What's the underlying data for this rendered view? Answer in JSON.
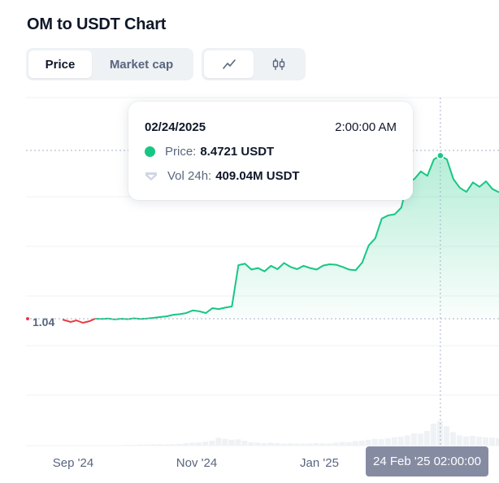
{
  "page": {
    "title": "OM to USDT Chart"
  },
  "tabs": {
    "metric": [
      {
        "label": "Price",
        "active": true
      },
      {
        "label": "Market cap",
        "active": false
      }
    ],
    "view": [
      {
        "icon": "line-chart-icon",
        "active": true
      },
      {
        "icon": "candlestick-icon",
        "active": false
      }
    ]
  },
  "tooltip": {
    "date": "02/24/2025",
    "time": "2:00:00 AM",
    "price_label": "Price:",
    "price_value": "8.4721 USDT",
    "vol_label": "Vol 24h:",
    "vol_value": "409.04M USDT"
  },
  "price_marker": "1.04",
  "x_hover_label": "24 Feb '25 02:00:00",
  "colors": {
    "up": "#16c784",
    "down": "#ea3943",
    "axis_text": "#58667e",
    "hover_bg": "#858ca2"
  },
  "chart_data": {
    "type": "line",
    "x_ticks": [
      "Sep '24",
      "Nov '24",
      "Jan '25"
    ],
    "baseline": 1.04,
    "series": [
      {
        "values": [
          1.04,
          1.03,
          1.05,
          1.01,
          1.04,
          1.02,
          1.06,
          1.03,
          1.05,
          1.08,
          1.12,
          1.15,
          1.22,
          1.25,
          1.3,
          1.42,
          1.38,
          1.3,
          1.52,
          1.48,
          1.55,
          1.6,
          3.48,
          3.55,
          3.28,
          3.35,
          3.2,
          3.45,
          3.3,
          3.58,
          3.4,
          3.3,
          3.45,
          3.35,
          3.28,
          3.46,
          3.52,
          3.5,
          3.4,
          3.28,
          3.25,
          3.6,
          4.38,
          4.7,
          5.6,
          5.75,
          5.8,
          6.1,
          7.3,
          7.4,
          7.75,
          7.55,
          8.3,
          8.47,
          8.3,
          7.4,
          7.0,
          6.82,
          7.25,
          7.05,
          7.3,
          6.95,
          6.8
        ],
        "volume": [
          0.02,
          0.02,
          0.02,
          0.02,
          0.02,
          0.03,
          0.03,
          0.04,
          0.05,
          0.05,
          0.06,
          0.05,
          0.06,
          0.07,
          0.1,
          0.12,
          0.13,
          0.16,
          0.2,
          0.32,
          0.28,
          0.24,
          0.26,
          0.2,
          0.14,
          0.12,
          0.1,
          0.12,
          0.1,
          0.08,
          0.09,
          0.09,
          0.08,
          0.08,
          0.1,
          0.09,
          0.09,
          0.12,
          0.15,
          0.14,
          0.18,
          0.2,
          0.24,
          0.28,
          0.26,
          0.3,
          0.34,
          0.36,
          0.42,
          0.5,
          0.48,
          0.6,
          0.9,
          1.0,
          0.8,
          0.55,
          0.42,
          0.38,
          0.4,
          0.36,
          0.34,
          0.32,
          0.3
        ]
      }
    ],
    "hover_index": 53
  }
}
